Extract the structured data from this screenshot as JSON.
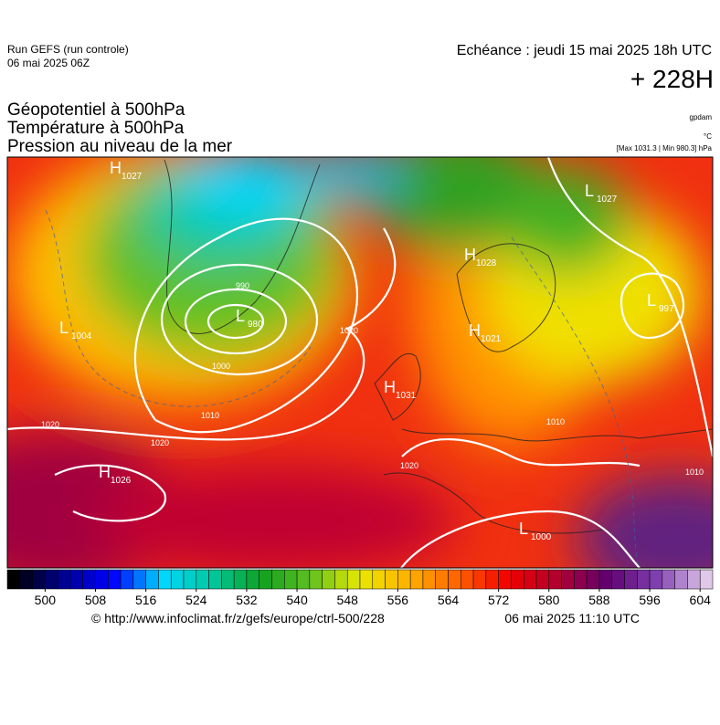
{
  "header": {
    "run": "Run GEFS (run controle)",
    "run_date": "06 mai 2025 06Z",
    "echeance": "Echéance : jeudi 15 mai 2025 18h UTC",
    "lead": "+ 228H"
  },
  "legend": {
    "lines": [
      "Géopotentiel à 500hPa",
      "Température à 500hPa",
      "Pression au niveau de la mer"
    ],
    "units": [
      "gpdam",
      "°C"
    ],
    "extremes": "[Max 1031.3 | Min 980.3] hPa"
  },
  "pressure_centers": [
    {
      "letter": "H",
      "value": "1027"
    },
    {
      "letter": "L",
      "value": "1027"
    },
    {
      "letter": "H",
      "value": "1028"
    },
    {
      "letter": "L",
      "value": "980"
    },
    {
      "letter": "L",
      "value": "997"
    },
    {
      "letter": "L",
      "value": "1004"
    },
    {
      "letter": "H",
      "value": "1031"
    },
    {
      "letter": "H",
      "value": "1021"
    },
    {
      "letter": "H",
      "value": "1026"
    },
    {
      "letter": "L",
      "value": "1000"
    }
  ],
  "isobar_labels": [
    "1020",
    "1020",
    "1020",
    "1020",
    "1010",
    "1000",
    "990",
    "1010",
    "1010"
  ],
  "colorbar": {
    "min": 494,
    "max": 606,
    "step": 2,
    "ticks": [
      500,
      508,
      516,
      524,
      532,
      540,
      548,
      556,
      564,
      572,
      580,
      588,
      596,
      604
    ],
    "stops": [
      "#000000",
      "#000090",
      "#0000ff",
      "#00d8ff",
      "#00c8a0",
      "#10a020",
      "#60c020",
      "#e8e800",
      "#ffb000",
      "#ff6000",
      "#f00000",
      "#b00030",
      "#600070",
      "#8040b0",
      "#e0c8e8"
    ]
  },
  "footer": {
    "source": "© http://www.infoclimat.fr/z/gefs/europe/ctrl-500/228",
    "generated": "06 mai 2025 11:10 UTC"
  }
}
